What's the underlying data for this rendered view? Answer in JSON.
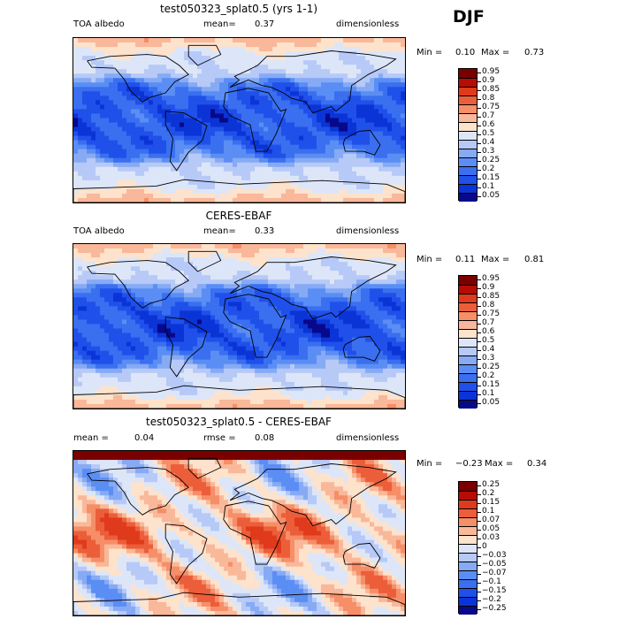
{
  "season": "DJF",
  "colors": {
    "scale13": [
      "#08088a",
      "#0b34d6",
      "#2050ea",
      "#3a6ff0",
      "#5b8ef4",
      "#86aaf4",
      "#b6c9f7",
      "#dde6f8",
      "#fde2cc",
      "#f9b89a",
      "#f68e68",
      "#ec5e3a",
      "#e03a1c",
      "#b50d05",
      "#7a0000"
    ],
    "diff": [
      "#08088a",
      "#0b34d6",
      "#2050ea",
      "#3a6ff0",
      "#5b8ef4",
      "#86aaf4",
      "#b6c9f7",
      "#dde6f8",
      "#fde2cc",
      "#f9b89a",
      "#f68e68",
      "#ec5e3a",
      "#e03a1c",
      "#b50d05",
      "#7a0000"
    ]
  },
  "panels": [
    {
      "title": "test050323_splat0.5 (yrs 1-1)",
      "left_label": "TOA albedo",
      "mean_label": "mean=",
      "mean_value": "0.37",
      "right_label": "dimensionless",
      "min_label": "Min =",
      "min_value": "0.10",
      "max_label": "Max =",
      "max_value": "0.73",
      "levels": [
        "0.95",
        "0.9",
        "0.85",
        "0.8",
        "0.75",
        "0.7",
        "0.6",
        "0.5",
        "0.4",
        "0.3",
        "0.25",
        "0.2",
        "0.15",
        "0.1",
        "0.05"
      ]
    },
    {
      "title": "CERES-EBAF",
      "left_label": "TOA albedo",
      "mean_label": "mean=",
      "mean_value": "0.33",
      "right_label": "dimensionless",
      "min_label": "Min =",
      "min_value": "0.11",
      "max_label": "Max =",
      "max_value": "0.81",
      "levels": [
        "0.95",
        "0.9",
        "0.85",
        "0.8",
        "0.75",
        "0.7",
        "0.6",
        "0.5",
        "0.4",
        "0.3",
        "0.25",
        "0.2",
        "0.15",
        "0.1",
        "0.05"
      ]
    },
    {
      "title": "test050323_splat0.5 - CERES-EBAF",
      "left_label": "mean =",
      "mean_label": "",
      "mean_value": "0.04",
      "rmse_label": "rmse =",
      "rmse_value": "0.08",
      "right_label": "dimensionless",
      "min_label": "Min =",
      "min_value": "−0.23",
      "max_label": "Max =",
      "max_value": "0.34",
      "levels": [
        "0.25",
        "0.2",
        "0.15",
        "0.1",
        "0.07",
        "0.05",
        "0.03",
        "0",
        "−0.03",
        "−0.05",
        "−0.07",
        "−0.1",
        "−0.15",
        "−0.2",
        "−0.25"
      ]
    }
  ],
  "chart_data": [
    {
      "type": "heatmap",
      "title": "test050323_splat0.5 (yrs 1-1)",
      "variable": "TOA albedo",
      "units": "dimensionless",
      "mean": 0.37,
      "min": 0.1,
      "max": 0.73,
      "contour_levels": [
        0.05,
        0.1,
        0.15,
        0.2,
        0.25,
        0.3,
        0.4,
        0.5,
        0.6,
        0.7,
        0.75,
        0.8,
        0.85,
        0.9,
        0.95
      ]
    },
    {
      "type": "heatmap",
      "title": "CERES-EBAF",
      "variable": "TOA albedo",
      "units": "dimensionless",
      "mean": 0.33,
      "min": 0.11,
      "max": 0.81,
      "contour_levels": [
        0.05,
        0.1,
        0.15,
        0.2,
        0.25,
        0.3,
        0.4,
        0.5,
        0.6,
        0.7,
        0.75,
        0.8,
        0.85,
        0.9,
        0.95
      ]
    },
    {
      "type": "heatmap",
      "title": "test050323_splat0.5 - CERES-EBAF",
      "units": "dimensionless",
      "mean": 0.04,
      "rmse": 0.08,
      "min": -0.23,
      "max": 0.34,
      "contour_levels": [
        -0.25,
        -0.2,
        -0.15,
        -0.1,
        -0.07,
        -0.05,
        -0.03,
        0,
        0.03,
        0.05,
        0.07,
        0.1,
        0.15,
        0.2,
        0.25
      ]
    }
  ]
}
